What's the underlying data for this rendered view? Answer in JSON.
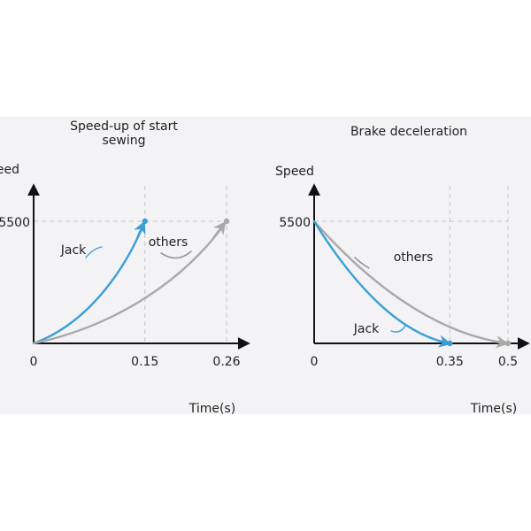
{
  "chart_data": [
    {
      "type": "line",
      "title": "Speed-up of start sewing",
      "ylabel": "Speed",
      "xlabel": "Time(s)",
      "x_ticks": [
        "0",
        "0.15",
        "0.26"
      ],
      "y_ticks": [
        "5500"
      ],
      "xlim": [
        0,
        0.3
      ],
      "ylim": [
        0,
        6200
      ],
      "grid": "dashed guides at tick values",
      "series": [
        {
          "name": "Jack",
          "color": "#3b9fd6",
          "curve": "ease-in",
          "points": [
            [
              0,
              0
            ],
            [
              0.15,
              5500
            ]
          ]
        },
        {
          "name": "others",
          "color": "#a9a9a9",
          "curve": "ease-in",
          "points": [
            [
              0,
              0
            ],
            [
              0.26,
              5500
            ]
          ]
        }
      ]
    },
    {
      "type": "line",
      "title": "Brake deceleration",
      "ylabel": "Speed",
      "xlabel": "Time(s)",
      "x_ticks": [
        "0",
        "0.35",
        "0.5"
      ],
      "y_ticks": [
        "5500"
      ],
      "xlim": [
        0,
        0.55
      ],
      "ylim": [
        0,
        6200
      ],
      "grid": "dashed guides at tick values",
      "series": [
        {
          "name": "others",
          "color": "#a9a9a9",
          "curve": "ease-out",
          "points": [
            [
              0,
              5500
            ],
            [
              0.5,
              0
            ]
          ]
        },
        {
          "name": "Jack",
          "color": "#3b9fd6",
          "curve": "ease-out",
          "points": [
            [
              0,
              5500
            ],
            [
              0.35,
              0
            ]
          ]
        }
      ]
    }
  ]
}
